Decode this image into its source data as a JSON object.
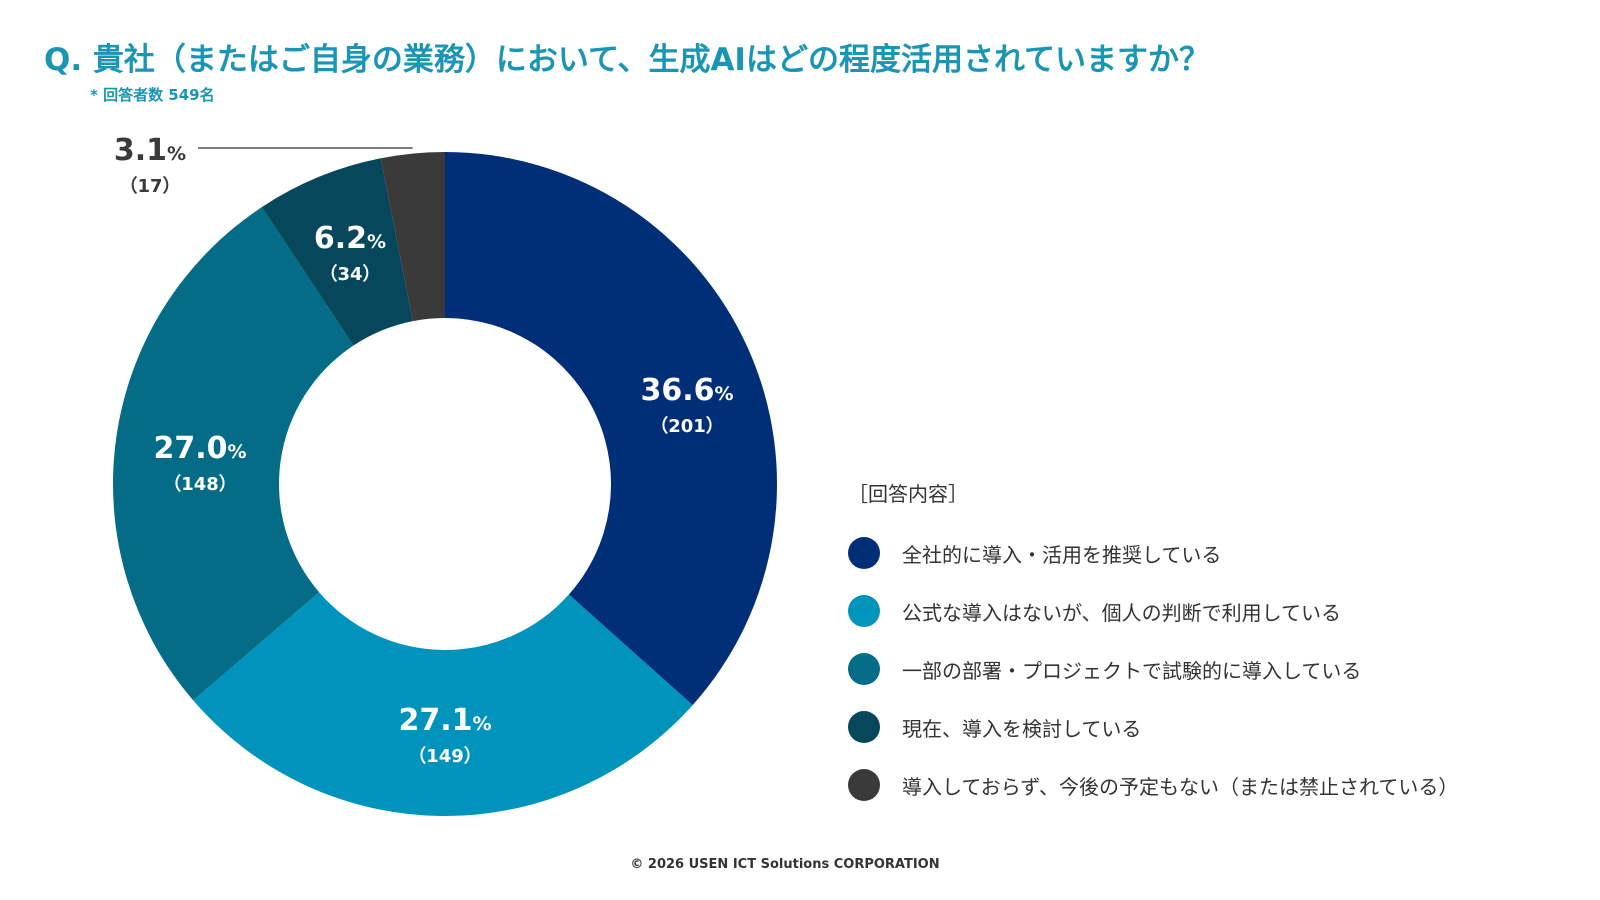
{
  "header": {
    "title": "Q. 貴社（またはご自身の業務）において、生成AIはどの程度活用されていますか？",
    "respondents": "* 回答者数 549名"
  },
  "chart_data": {
    "type": "pie",
    "donut": true,
    "legend_placement": "right",
    "legend_heading": "［回答内容］",
    "slices": [
      {
        "label": "全社的に導入・活用を推奨している",
        "value": 36.6,
        "count": 201,
        "value_text": "36.6",
        "count_text": "（201）",
        "color": "#002f78",
        "label_color": "#ffffff"
      },
      {
        "label": "公式な導入はないが、個人の判断で利用している",
        "value": 27.1,
        "count": 149,
        "value_text": "27.1",
        "count_text": "（149）",
        "color": "#0093bb",
        "label_color": "#ffffff"
      },
      {
        "label": "一部の部署・プロジェクトで試験的に導入している",
        "value": 27.0,
        "count": 148,
        "value_text": "27.0",
        "count_text": "（148）",
        "color": "#046c86",
        "label_color": "#ffffff"
      },
      {
        "label": "現在、導入を検討している",
        "value": 6.2,
        "count": 34,
        "value_text": "6.2",
        "count_text": "（34）",
        "color": "#06475c",
        "label_color": "#ffffff"
      },
      {
        "label": "導入しておらず、今後の予定もない（または禁止されている）",
        "value": 3.1,
        "count": 17,
        "value_text": "3.1",
        "count_text": "（17）",
        "color": "#3a3a3a",
        "label_color": "#3a3a3a"
      }
    ],
    "percent_sign": "%"
  },
  "footer": {
    "copyright": "© 2026 USEN ICT Solutions CORPORATION"
  }
}
